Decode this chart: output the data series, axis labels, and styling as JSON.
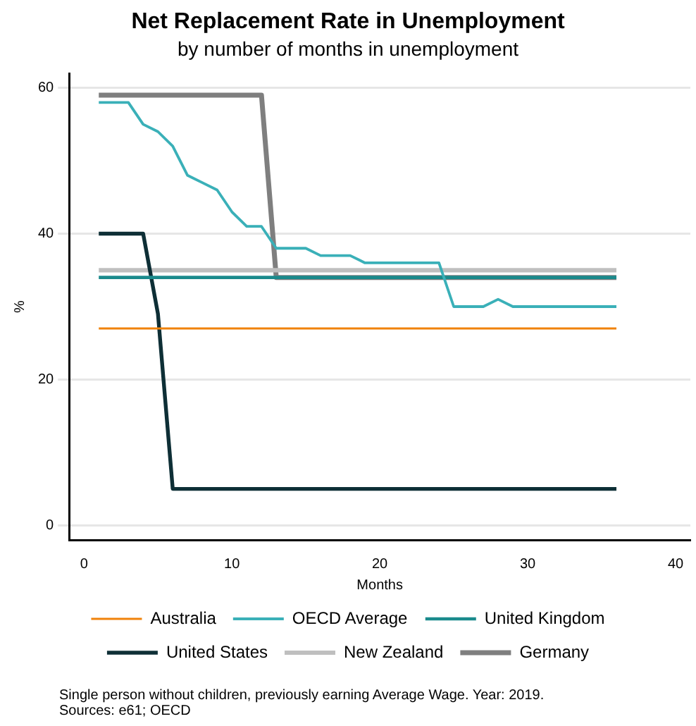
{
  "chart_data": {
    "type": "line",
    "title": "Net Replacement Rate in Unemployment",
    "subtitle": "by number of months in unemployment",
    "xlabel": "Months",
    "ylabel": "%",
    "xlim": [
      -1,
      41
    ],
    "xticks": [
      0,
      10,
      20,
      30,
      40
    ],
    "ylim": [
      -2,
      62
    ],
    "yticks": [
      0,
      20,
      40,
      60
    ],
    "grid": "y",
    "legend": "bottom",
    "marker": "none",
    "line_style": "solid",
    "series": [
      {
        "name": "Australia",
        "color": "#f0820a",
        "x": [
          1,
          36
        ],
        "values": [
          27,
          27
        ]
      },
      {
        "name": "OECD Average",
        "color": "#3ab0b8",
        "x": [
          1,
          2,
          3,
          4,
          5,
          6,
          7,
          8,
          9,
          10,
          11,
          12,
          13,
          14,
          15,
          16,
          17,
          18,
          19,
          20,
          21,
          22,
          23,
          24,
          25,
          26,
          27,
          28,
          29,
          30,
          31,
          32,
          33,
          34,
          35,
          36
        ],
        "values": [
          58,
          58,
          58,
          55,
          54,
          52,
          48,
          47,
          46,
          43,
          41,
          41,
          38,
          38,
          38,
          37,
          37,
          37,
          36,
          36,
          36,
          36,
          36,
          36,
          30,
          30,
          30,
          31,
          30,
          30,
          30,
          30,
          30,
          30,
          30,
          30
        ]
      },
      {
        "name": "United Kingdom",
        "color": "#1a8a8c",
        "x": [
          1,
          36
        ],
        "values": [
          34,
          34
        ]
      },
      {
        "name": "United States",
        "color": "#0e2f36",
        "x": [
          1,
          2,
          3,
          4,
          5,
          6,
          36
        ],
        "values": [
          40,
          40,
          40,
          40,
          29,
          5,
          5
        ]
      },
      {
        "name": "New Zealand",
        "color": "#bfbfbf",
        "x": [
          1,
          36
        ],
        "values": [
          35,
          35
        ]
      },
      {
        "name": "Germany",
        "color": "#7f7f7f",
        "x": [
          1,
          12,
          13,
          36
        ],
        "values": [
          59,
          59,
          34,
          34
        ]
      }
    ],
    "annotations": [
      "Single person without children, previously earning Average Wage. Year: 2019.",
      "Sources: e61; OECD"
    ]
  }
}
